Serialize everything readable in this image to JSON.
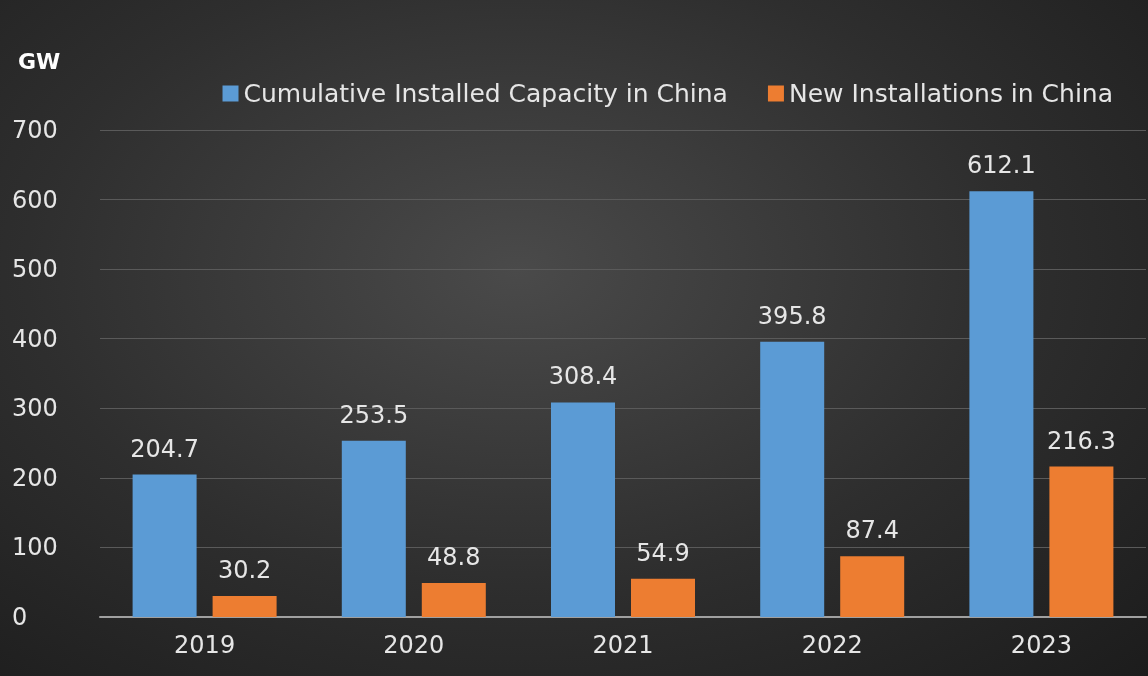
{
  "chart_data": {
    "type": "bar",
    "ylabel": "GW",
    "categories": [
      "2019",
      "2020",
      "2021",
      "2022",
      "2023"
    ],
    "series": [
      {
        "name": "Cumulative Installed Capacity in China",
        "color": "#5b9bd5",
        "values": [
          204.7,
          253.5,
          308.4,
          395.8,
          612.1
        ]
      },
      {
        "name": "New Installations in China",
        "color": "#ed7d31",
        "values": [
          30.2,
          48.8,
          54.9,
          87.4,
          216.3
        ]
      }
    ],
    "ylim": [
      0,
      700
    ],
    "yticks": [
      0,
      100,
      200,
      300,
      400,
      500,
      600,
      700
    ],
    "grid": "y",
    "legend": "top right",
    "data_labels": true
  }
}
